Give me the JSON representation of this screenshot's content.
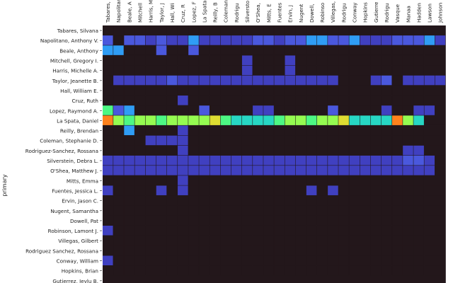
{
  "chart_data": {
    "type": "heatmap",
    "title": "",
    "ylabel": "primary",
    "xlabel": "",
    "grid": false,
    "row_labels": [
      "Tabares, Silvana",
      "Napolitano, Anthony V.",
      "Beale, Anthony",
      "Mitchell, Gregory I.",
      "Harris, Michelle A.",
      "Taylor, Jeanette B.",
      "Hall, William E.",
      "Cruz, Ruth",
      "Lopez, Raymond A.",
      "La Spata, Daniel",
      "Reilly, Brendan",
      "Coleman, Stephanie D.",
      "Rodriguez-Sanchez, Rossana",
      "Silverstein, Debra L.",
      "O'Shea, Matthew J.",
      "Mitts, Emma",
      "Fuentes, Jessica L.",
      "Ervin, Jason C.",
      "Nugent, Samantha",
      "Dowell, Pat",
      "Robinson, Lamont J.",
      "Villegas, Gilbert",
      "Rodriguez Sanchez, Rossana",
      "Conway, William",
      "Hopkins, Brian",
      "Gutierrez, Jeylu B."
    ],
    "column_labels": [
      "Tabares, S",
      "Napolitano",
      "Beale, A",
      "Mitchell",
      "Harris, M",
      "Taylor, J",
      "Hall, Wi",
      "Cruz, R",
      "Lopez, F",
      "La Spata",
      "Reilly, B",
      "Coleman",
      "Rodrigu",
      "Silversto",
      "O'Shea,",
      "Mitts, E",
      "Fuentes",
      "Ervin, J",
      "Nugent",
      "Dowell,",
      "Robinso",
      "Villegas,",
      "Rodrigu",
      "Conway",
      "Hopkins",
      "Gutierre",
      "Rodrigu",
      "Vasque",
      "Manaa",
      "Hadden",
      "Lawson",
      "Johnson"
    ],
    "values": [
      [
        0,
        0,
        0,
        0,
        0,
        0,
        0,
        0,
        0,
        0,
        0,
        0,
        0,
        0,
        0,
        0,
        0,
        0,
        0,
        0,
        0,
        0,
        0,
        0,
        0,
        0,
        0,
        0,
        0,
        0,
        0,
        0
      ],
      [
        2,
        0,
        2,
        2,
        1,
        2,
        1,
        1,
        3,
        1,
        1,
        1,
        1,
        1,
        2,
        2,
        1,
        2,
        2,
        3,
        3,
        2,
        2,
        3,
        1,
        1,
        1,
        2,
        2,
        2,
        3,
        1
      ],
      [
        3,
        3,
        0,
        0,
        0,
        2,
        0,
        0,
        2,
        0,
        0,
        0,
        0,
        0,
        0,
        0,
        0,
        0,
        0,
        0,
        0,
        0,
        0,
        0,
        0,
        0,
        0,
        0,
        0,
        0,
        0,
        0
      ],
      [
        0,
        0,
        0,
        0,
        0,
        0,
        0,
        0,
        0,
        0,
        0,
        0,
        0,
        1,
        0,
        0,
        0,
        1,
        0,
        0,
        0,
        0,
        0,
        0,
        0,
        0,
        0,
        0,
        0,
        0,
        0,
        0
      ],
      [
        0,
        0,
        0,
        0,
        0,
        0,
        0,
        0,
        0,
        0,
        0,
        0,
        0,
        1,
        0,
        0,
        0,
        1,
        0,
        0,
        0,
        0,
        0,
        0,
        0,
        0,
        0,
        0,
        0,
        0,
        0,
        0
      ],
      [
        0,
        1,
        1,
        1,
        1,
        1,
        2,
        1,
        1,
        1,
        1,
        1,
        1,
        1,
        1,
        1,
        1,
        1,
        1,
        1,
        1,
        1,
        0,
        0,
        0,
        1,
        2,
        0,
        1,
        1,
        1,
        1
      ],
      [
        0,
        0,
        0,
        0,
        0,
        0,
        0,
        0,
        0,
        0,
        0,
        0,
        0,
        0,
        0,
        0,
        0,
        0,
        0,
        0,
        0,
        0,
        0,
        0,
        0,
        0,
        0,
        0,
        0,
        0,
        0,
        0
      ],
      [
        0,
        0,
        0,
        0,
        0,
        0,
        0,
        1,
        0,
        0,
        0,
        0,
        0,
        0,
        0,
        0,
        0,
        0,
        0,
        0,
        0,
        0,
        0,
        0,
        0,
        0,
        0,
        0,
        0,
        0,
        0,
        0
      ],
      [
        5,
        2,
        3,
        0,
        0,
        0,
        0,
        0,
        0,
        2,
        0,
        0,
        0,
        0,
        1,
        1,
        0,
        0,
        0,
        0,
        0,
        2,
        0,
        0,
        0,
        0,
        1,
        0,
        0,
        1,
        1,
        0
      ],
      [
        8,
        6,
        5,
        6,
        6,
        5,
        6,
        6,
        6,
        6,
        7,
        5,
        4,
        4,
        4,
        4,
        5,
        6,
        6,
        5,
        6,
        6,
        7,
        4,
        4,
        4,
        4,
        8,
        6,
        4,
        0,
        0
      ],
      [
        0,
        0,
        3,
        0,
        0,
        0,
        0,
        1,
        0,
        0,
        0,
        0,
        0,
        0,
        0,
        0,
        0,
        0,
        0,
        0,
        0,
        0,
        0,
        0,
        0,
        0,
        0,
        0,
        0,
        0,
        0,
        0
      ],
      [
        0,
        0,
        0,
        0,
        1,
        1,
        1,
        1,
        0,
        0,
        0,
        0,
        0,
        0,
        0,
        0,
        0,
        0,
        0,
        0,
        0,
        0,
        0,
        0,
        0,
        0,
        0,
        0,
        0,
        0,
        0,
        0
      ],
      [
        0,
        0,
        0,
        0,
        0,
        0,
        0,
        1,
        0,
        0,
        0,
        0,
        0,
        0,
        0,
        0,
        0,
        0,
        0,
        0,
        0,
        0,
        0,
        0,
        0,
        0,
        0,
        0,
        1,
        1,
        0,
        0
      ],
      [
        1,
        1,
        1,
        1,
        1,
        1,
        1,
        1,
        1,
        1,
        1,
        1,
        1,
        1,
        1,
        1,
        1,
        1,
        1,
        1,
        1,
        1,
        1,
        1,
        1,
        1,
        1,
        1,
        2,
        2,
        1,
        0
      ],
      [
        1,
        1,
        1,
        1,
        1,
        1,
        1,
        1,
        1,
        1,
        1,
        1,
        1,
        1,
        1,
        1,
        1,
        1,
        1,
        1,
        1,
        1,
        1,
        1,
        1,
        1,
        1,
        1,
        1,
        1,
        1,
        0
      ],
      [
        0,
        0,
        0,
        0,
        0,
        0,
        0,
        1,
        0,
        0,
        0,
        0,
        0,
        0,
        0,
        0,
        0,
        0,
        0,
        0,
        0,
        0,
        0,
        0,
        0,
        0,
        0,
        0,
        0,
        0,
        0,
        0
      ],
      [
        1,
        0,
        0,
        0,
        0,
        1,
        0,
        1,
        0,
        0,
        0,
        0,
        0,
        0,
        0,
        0,
        0,
        0,
        0,
        1,
        0,
        1,
        0,
        0,
        0,
        0,
        0,
        0,
        0,
        0,
        0,
        0
      ],
      [
        0,
        0,
        0,
        0,
        0,
        0,
        0,
        0,
        0,
        0,
        0,
        0,
        0,
        0,
        0,
        0,
        0,
        0,
        0,
        0,
        0,
        0,
        0,
        0,
        0,
        0,
        0,
        0,
        0,
        0,
        0,
        0
      ],
      [
        0,
        0,
        0,
        0,
        0,
        0,
        0,
        0,
        0,
        0,
        0,
        0,
        0,
        0,
        0,
        0,
        0,
        0,
        0,
        0,
        0,
        0,
        0,
        0,
        0,
        0,
        0,
        0,
        0,
        0,
        0,
        0
      ],
      [
        0,
        0,
        0,
        0,
        0,
        0,
        0,
        0,
        0,
        0,
        0,
        0,
        0,
        0,
        0,
        0,
        0,
        0,
        0,
        0,
        0,
        0,
        0,
        0,
        0,
        0,
        0,
        0,
        0,
        0,
        0,
        0
      ],
      [
        1,
        0,
        0,
        0,
        0,
        0,
        0,
        0,
        0,
        0,
        0,
        0,
        0,
        0,
        0,
        0,
        0,
        0,
        0,
        0,
        0,
        0,
        0,
        0,
        0,
        0,
        0,
        0,
        0,
        0,
        0,
        0
      ],
      [
        0,
        0,
        0,
        0,
        0,
        0,
        0,
        0,
        0,
        0,
        0,
        0,
        0,
        0,
        0,
        0,
        0,
        0,
        0,
        0,
        0,
        0,
        0,
        0,
        0,
        0,
        0,
        0,
        0,
        0,
        0,
        0
      ],
      [
        0,
        0,
        0,
        0,
        0,
        0,
        0,
        0,
        0,
        0,
        0,
        0,
        0,
        0,
        0,
        0,
        0,
        0,
        0,
        0,
        0,
        0,
        0,
        0,
        0,
        0,
        0,
        0,
        0,
        0,
        0,
        0
      ],
      [
        1,
        0,
        0,
        0,
        0,
        0,
        0,
        0,
        0,
        0,
        0,
        0,
        0,
        0,
        0,
        0,
        0,
        0,
        0,
        0,
        0,
        0,
        0,
        0,
        0,
        0,
        0,
        0,
        0,
        0,
        0,
        0
      ],
      [
        0,
        0,
        0,
        0,
        0,
        0,
        0,
        0,
        0,
        0,
        0,
        0,
        0,
        0,
        0,
        0,
        0,
        0,
        0,
        0,
        0,
        0,
        0,
        0,
        0,
        0,
        0,
        0,
        0,
        0,
        0,
        0
      ],
      [
        0,
        0,
        0,
        0,
        0,
        0,
        0,
        0,
        0,
        0,
        0,
        0,
        0,
        0,
        0,
        0,
        0,
        0,
        0,
        0,
        0,
        0,
        0,
        0,
        0,
        0,
        0,
        0,
        0,
        0,
        0,
        0
      ]
    ],
    "value_range": [
      0,
      8
    ],
    "colormap": [
      "#23171b",
      "#4040c0",
      "#4a58dd",
      "#2f9df5",
      "#27d7c4",
      "#4df884",
      "#95fb51",
      "#dedd32",
      "#ff821d"
    ]
  }
}
